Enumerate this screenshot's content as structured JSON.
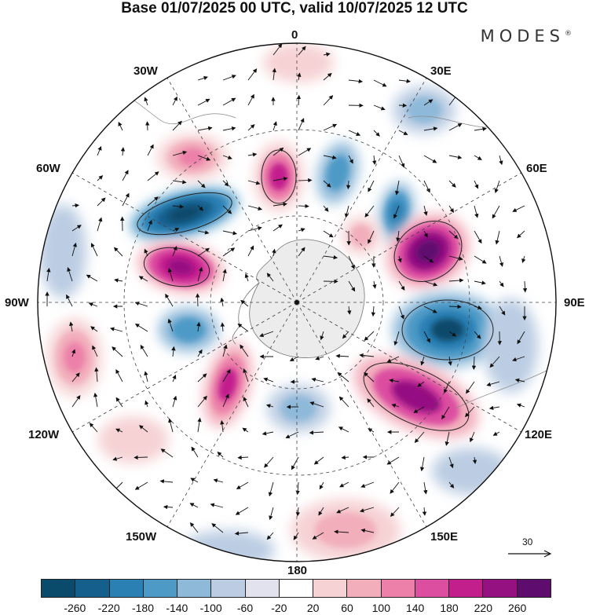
{
  "title": "Base 01/07/2025 00 UTC, valid 10/07/2025 12 UTC",
  "brand": "MODES",
  "brand_mark": "®",
  "longitude_labels": {
    "lon_0": "0",
    "lon_30e": "30E",
    "lon_60e": "60E",
    "lon_90e": "90E",
    "lon_120e": "120E",
    "lon_150e": "150E",
    "lon_180": "180",
    "lon_150w": "150W",
    "lon_120w": "120W",
    "lon_90w": "90W",
    "lon_60w": "60W",
    "lon_30w": "30W"
  },
  "reference_vector": {
    "label": "30"
  },
  "colorbar": {
    "tick_labels": [
      "-260",
      "-220",
      "-180",
      "-140",
      "-100",
      "-60",
      "-20",
      "20",
      "60",
      "100",
      "140",
      "180",
      "220",
      "260"
    ],
    "colors": [
      "#0a4a6b",
      "#155f8c",
      "#2a7fb3",
      "#4d9ac7",
      "#8fb9d9",
      "#bccde3",
      "#e2e2ee",
      "#ffffff",
      "#f6d2d4",
      "#f2aebb",
      "#ec80a9",
      "#dc4ea0",
      "#c21f8d",
      "#951182",
      "#5e0c6e"
    ]
  },
  "map_features": {
    "projection": "south polar stereographic",
    "land_color": "#ececec",
    "graticule": "dashed"
  }
}
